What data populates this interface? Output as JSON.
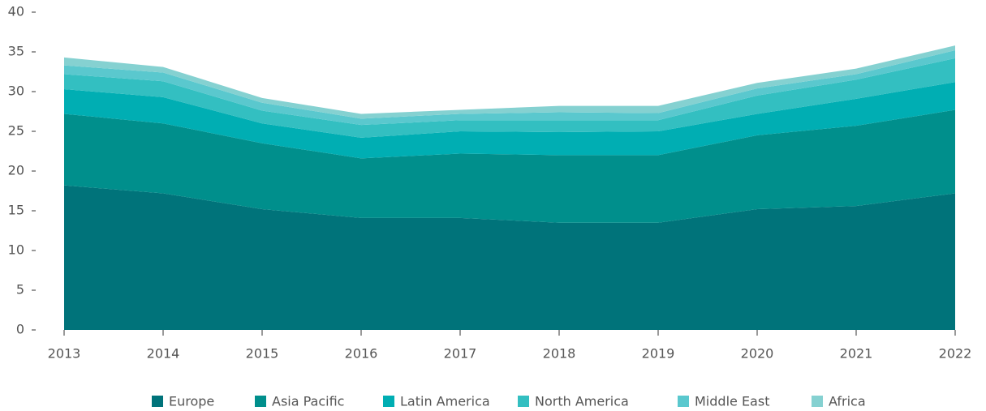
{
  "chart_data": {
    "type": "stacked_area",
    "categories": [
      "2013",
      "2014",
      "2015",
      "2016",
      "2017",
      "2018",
      "2019",
      "2020",
      "2021",
      "2022"
    ],
    "series": [
      {
        "name": "Europe",
        "color": "#00737a",
        "values": [
          18.2,
          17.2,
          15.2,
          14.1,
          14.1,
          13.5,
          13.5,
          15.2,
          15.6,
          17.2
        ]
      },
      {
        "name": "Asia Pacific",
        "color": "#008f8c",
        "values": [
          9.0,
          8.8,
          8.3,
          7.5,
          8.1,
          8.5,
          8.5,
          9.3,
          10.1,
          10.5
        ]
      },
      {
        "name": "Latin America",
        "color": "#00aeb3",
        "values": [
          3.1,
          3.3,
          2.5,
          2.6,
          2.8,
          2.9,
          3.0,
          2.7,
          3.4,
          3.5
        ]
      },
      {
        "name": "North America",
        "color": "#33bfc1",
        "values": [
          1.9,
          2.0,
          1.6,
          1.6,
          1.4,
          1.5,
          1.4,
          2.3,
          2.4,
          3.0
        ]
      },
      {
        "name": "Middle East",
        "color": "#5ac8ce",
        "values": [
          1.1,
          1.1,
          1.0,
          0.8,
          0.8,
          1.0,
          0.9,
          0.9,
          0.7,
          1.0
        ]
      },
      {
        "name": "Africa",
        "color": "#85d1d1",
        "values": [
          1.0,
          0.7,
          0.6,
          0.6,
          0.5,
          0.8,
          0.9,
          0.7,
          0.7,
          0.6
        ]
      }
    ],
    "ylim": [
      0,
      40
    ],
    "yticks": [
      0,
      5,
      10,
      15,
      20,
      25,
      30,
      35,
      40
    ],
    "legend": "bottom"
  }
}
